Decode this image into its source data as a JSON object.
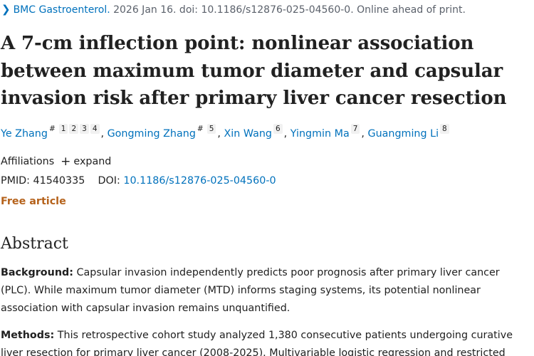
{
  "citation": {
    "journal": "BMC Gastroenterol.",
    "details": " 2026 Jan 16. doi: 10.1186/s12876-025-04560-0. Online ahead of print."
  },
  "title": "A 7-cm inflection point: nonlinear association between maximum tumor diameter and capsular invasion risk after primary liver cancer resection",
  "authors": [
    {
      "name": "Ye Zhang",
      "hash": "#",
      "affils": [
        "1",
        "2",
        "3",
        "4"
      ]
    },
    {
      "name": "Gongming Zhang",
      "hash": "#",
      "affils": [
        "5"
      ]
    },
    {
      "name": "Xin Wang",
      "hash": "",
      "affils": [
        "6"
      ]
    },
    {
      "name": "Yingmin Ma",
      "hash": "",
      "affils": [
        "7"
      ]
    },
    {
      "name": "Guangming Li",
      "hash": "",
      "affils": [
        "8"
      ]
    }
  ],
  "affiliations": {
    "label": "Affiliations",
    "expand_icon": "plus-icon",
    "expand_label": "expand"
  },
  "identifiers": {
    "pmid_label": "PMID:",
    "pmid": "41540335",
    "doi_label": "DOI:",
    "doi": "10.1186/s12876-025-04560-0"
  },
  "free_article": "Free article",
  "abstract": {
    "heading": "Abstract",
    "background_label": "Background:",
    "background_text": " Capsular invasion independently predicts poor prognosis after primary liver cancer (PLC). While maximum tumor diameter (MTD) informs staging systems, its potential nonlinear association with capsular invasion remains unquantified.",
    "methods_label": "Methods:",
    "methods_text": " This retrospective cohort study analyzed 1,380 consecutive patients undergoing curative liver resection for primary liver cancer (2008-2025). Multivariable logistic regression and restricted"
  },
  "colors": {
    "link": "#0071bc",
    "free_article": "#b5621b",
    "text": "#212121"
  }
}
